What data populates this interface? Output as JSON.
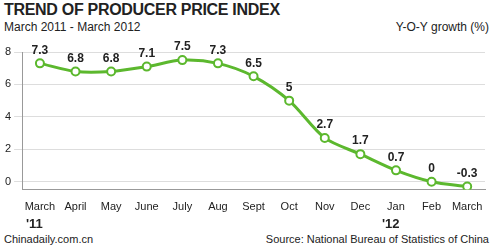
{
  "chart_data": {
    "type": "line",
    "title": "TREND OF PRODUCER PRICE INDEX",
    "subtitle": "March 2011 - March 2012",
    "y_label": "Y-O-Y growth (%)",
    "credit": "Chinadaily.com.cn",
    "source": "Source: National Bureau of Statistics of China",
    "categories": [
      "March",
      "April",
      "May",
      "June",
      "July",
      "Aug",
      "Sept",
      "Oct",
      "Nov",
      "Dec",
      "Jan",
      "Feb",
      "March"
    ],
    "years": [
      "'11",
      null,
      null,
      null,
      null,
      null,
      null,
      null,
      null,
      null,
      "'12",
      null,
      null
    ],
    "values": [
      7.3,
      6.8,
      6.8,
      7.1,
      7.5,
      7.3,
      6.5,
      5,
      2.7,
      1.7,
      0.7,
      0,
      -0.3
    ],
    "color": "#5cb82e",
    "marker": "circle",
    "ylim": [
      -0.5,
      8
    ],
    "yticks": [
      0,
      2,
      4,
      6,
      8
    ],
    "grid": true,
    "data_labels": true
  }
}
